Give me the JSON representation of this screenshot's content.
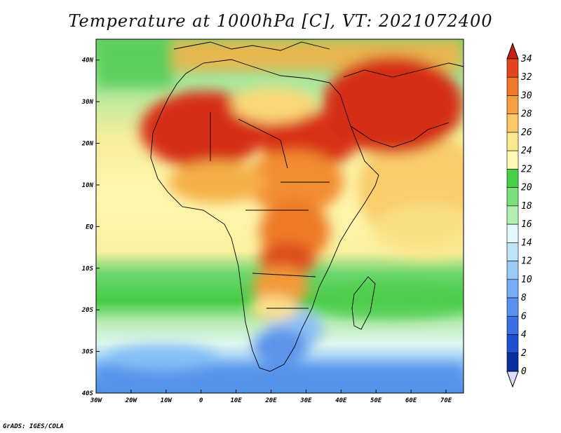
{
  "title": "Temperature at 1000hPa [C], VT: 2021072400",
  "credit": "GrADS: IGES/COLA",
  "map": {
    "projection": "lat-lon",
    "variable": "Temperature at 1000hPa",
    "units": "C",
    "valid_time": "2021072400",
    "lon_range": [
      -30,
      75
    ],
    "lat_range": [
      -40,
      45
    ],
    "lon_ticks": [
      "30W",
      "20W",
      "10W",
      "0",
      "10E",
      "20E",
      "30E",
      "40E",
      "50E",
      "60E",
      "70E"
    ],
    "lat_ticks": [
      "40S",
      "30S",
      "20S",
      "10S",
      "EQ",
      "10N",
      "20N",
      "30N",
      "40N"
    ]
  },
  "colorbar": {
    "labels": [
      "34",
      "32",
      "30",
      "28",
      "26",
      "24",
      "22",
      "20",
      "18",
      "16",
      "14",
      "12",
      "10",
      "8",
      "6",
      "4",
      "2",
      "0"
    ],
    "colors": [
      "#ddddff",
      "#00005f",
      "#0a2fa0",
      "#1e50d2",
      "#3a6fe6",
      "#5a91f0",
      "#78adf6",
      "#9ccaf8",
      "#bfe3fa",
      "#e3f8fb",
      "#b4f0b4",
      "#7ce07c",
      "#46d246",
      "#fffab4",
      "#fde78c",
      "#fac864",
      "#f5a03c",
      "#f07828",
      "#e1461e",
      "#c81e14"
    ]
  }
}
